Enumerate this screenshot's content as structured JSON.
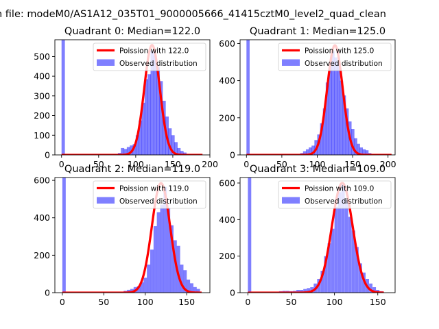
{
  "figure": {
    "suptitle": "n file: modeM0/AS1A12_035T01_9000005666_41415cztM0_level2_quad_clean"
  },
  "chart_data": [
    {
      "type": "bar",
      "quadrant": 0,
      "title": "Quadrant 0: Median=122.0",
      "xlim": [
        -9,
        200
      ],
      "ylim": [
        0,
        585
      ],
      "xticks": [
        0,
        50,
        100,
        150,
        200
      ],
      "yticks": [
        0,
        100,
        200,
        300,
        400,
        500
      ],
      "bin_width": 4.5,
      "legend": {
        "placement": "top-right",
        "line_label": "Poission with 122.0",
        "bar_label": "Observed distribution"
      },
      "poisson": {
        "mean": 122.0,
        "peak": 558,
        "sigma": 10.5,
        "x_range": [
          0,
          190
        ]
      },
      "bars": [
        {
          "x": 0,
          "v": 585
        },
        {
          "x": 72,
          "v": 5
        },
        {
          "x": 76,
          "v": 10
        },
        {
          "x": 80,
          "v": 35
        },
        {
          "x": 84,
          "v": 30
        },
        {
          "x": 88,
          "v": 40
        },
        {
          "x": 92,
          "v": 48
        },
        {
          "x": 96,
          "v": 55
        },
        {
          "x": 100,
          "v": 100
        },
        {
          "x": 104,
          "v": 175
        },
        {
          "x": 108,
          "v": 265
        },
        {
          "x": 112,
          "v": 385
        },
        {
          "x": 116,
          "v": 410
        },
        {
          "x": 120,
          "v": 530
        },
        {
          "x": 124,
          "v": 505
        },
        {
          "x": 128,
          "v": 445
        },
        {
          "x": 132,
          "v": 375
        },
        {
          "x": 136,
          "v": 275
        },
        {
          "x": 140,
          "v": 195
        },
        {
          "x": 144,
          "v": 135
        },
        {
          "x": 148,
          "v": 100
        },
        {
          "x": 152,
          "v": 65
        },
        {
          "x": 156,
          "v": 35
        },
        {
          "x": 160,
          "v": 20
        },
        {
          "x": 164,
          "v": 12
        },
        {
          "x": 168,
          "v": 5
        },
        {
          "x": 172,
          "v": 3
        }
      ]
    },
    {
      "type": "bar",
      "quadrant": 1,
      "title": "Quadrant 1: Median=125.0",
      "xlim": [
        -9,
        210
      ],
      "ylim": [
        0,
        620
      ],
      "xticks": [
        0,
        50,
        100,
        150,
        200
      ],
      "yticks": [
        0,
        200,
        400,
        600
      ],
      "bin_width": 4.5,
      "legend": {
        "placement": "top-right",
        "line_label": "Poission with 125.0",
        "bar_label": "Observed distribution"
      },
      "poisson": {
        "mean": 125.0,
        "peak": 590,
        "sigma": 11,
        "x_range": [
          0,
          205
        ]
      },
      "bars": [
        {
          "x": 0,
          "v": 620
        },
        {
          "x": 72,
          "v": 5
        },
        {
          "x": 76,
          "v": 10
        },
        {
          "x": 80,
          "v": 20
        },
        {
          "x": 84,
          "v": 30
        },
        {
          "x": 88,
          "v": 40
        },
        {
          "x": 92,
          "v": 50
        },
        {
          "x": 96,
          "v": 80
        },
        {
          "x": 100,
          "v": 110
        },
        {
          "x": 104,
          "v": 170
        },
        {
          "x": 108,
          "v": 250
        },
        {
          "x": 112,
          "v": 390
        },
        {
          "x": 116,
          "v": 475
        },
        {
          "x": 120,
          "v": 560
        },
        {
          "x": 124,
          "v": 525
        },
        {
          "x": 128,
          "v": 500
        },
        {
          "x": 132,
          "v": 400
        },
        {
          "x": 136,
          "v": 320
        },
        {
          "x": 140,
          "v": 250
        },
        {
          "x": 144,
          "v": 180
        },
        {
          "x": 148,
          "v": 140
        },
        {
          "x": 152,
          "v": 90
        },
        {
          "x": 156,
          "v": 60
        },
        {
          "x": 160,
          "v": 40
        },
        {
          "x": 164,
          "v": 30
        },
        {
          "x": 168,
          "v": 25
        },
        {
          "x": 172,
          "v": 10
        },
        {
          "x": 176,
          "v": 5
        }
      ]
    },
    {
      "type": "bar",
      "quadrant": 2,
      "title": "Quadrant 2: Median=119.0",
      "xlim": [
        -9,
        178
      ],
      "ylim": [
        0,
        615
      ],
      "xticks": [
        0,
        50,
        100,
        150
      ],
      "yticks": [
        0,
        200,
        400,
        600
      ],
      "bin_width": 4.1,
      "legend": {
        "placement": "top-right",
        "line_label": "Poission with 119.0",
        "bar_label": "Observed distribution"
      },
      "poisson": {
        "mean": 119.0,
        "peak": 585,
        "sigma": 11,
        "x_range": [
          0,
          168
        ]
      },
      "bars": [
        {
          "x": 0,
          "v": 615
        },
        {
          "x": 70,
          "v": 5
        },
        {
          "x": 74,
          "v": 10
        },
        {
          "x": 78,
          "v": 15
        },
        {
          "x": 82,
          "v": 20
        },
        {
          "x": 86,
          "v": 30
        },
        {
          "x": 90,
          "v": 35
        },
        {
          "x": 94,
          "v": 55
        },
        {
          "x": 98,
          "v": 80
        },
        {
          "x": 102,
          "v": 150
        },
        {
          "x": 106,
          "v": 230
        },
        {
          "x": 110,
          "v": 355
        },
        {
          "x": 114,
          "v": 430
        },
        {
          "x": 118,
          "v": 470
        },
        {
          "x": 122,
          "v": 565
        },
        {
          "x": 126,
          "v": 450
        },
        {
          "x": 130,
          "v": 360
        },
        {
          "x": 134,
          "v": 280
        },
        {
          "x": 138,
          "v": 250
        },
        {
          "x": 142,
          "v": 150
        },
        {
          "x": 146,
          "v": 120
        },
        {
          "x": 150,
          "v": 70
        },
        {
          "x": 154,
          "v": 50
        },
        {
          "x": 158,
          "v": 30
        },
        {
          "x": 162,
          "v": 20
        }
      ]
    },
    {
      "type": "bar",
      "quadrant": 3,
      "title": "Quadrant 3: Median=109.0",
      "xlim": [
        -9,
        170
      ],
      "ylim": [
        0,
        630
      ],
      "xticks": [
        0,
        50,
        100,
        150
      ],
      "yticks": [
        0,
        200,
        400,
        600
      ],
      "bin_width": 3.9,
      "legend": {
        "placement": "top-right",
        "line_label": "Poission with 109.0",
        "bar_label": "Observed distribution"
      },
      "poisson": {
        "mean": 109.0,
        "peak": 600,
        "sigma": 12,
        "x_range": [
          0,
          157
        ]
      },
      "bars": [
        {
          "x": 0,
          "v": 630
        },
        {
          "x": 28,
          "v": 5
        },
        {
          "x": 32,
          "v": 5
        },
        {
          "x": 36,
          "v": 8
        },
        {
          "x": 40,
          "v": 10
        },
        {
          "x": 44,
          "v": 10
        },
        {
          "x": 48,
          "v": 8
        },
        {
          "x": 52,
          "v": 10
        },
        {
          "x": 56,
          "v": 15
        },
        {
          "x": 60,
          "v": 15
        },
        {
          "x": 64,
          "v": 20
        },
        {
          "x": 68,
          "v": 25
        },
        {
          "x": 72,
          "v": 30
        },
        {
          "x": 76,
          "v": 50
        },
        {
          "x": 80,
          "v": 75
        },
        {
          "x": 84,
          "v": 120
        },
        {
          "x": 88,
          "v": 200
        },
        {
          "x": 92,
          "v": 270
        },
        {
          "x": 96,
          "v": 350
        },
        {
          "x": 100,
          "v": 470
        },
        {
          "x": 104,
          "v": 550
        },
        {
          "x": 108,
          "v": 600
        },
        {
          "x": 112,
          "v": 510
        },
        {
          "x": 116,
          "v": 415
        },
        {
          "x": 120,
          "v": 340
        },
        {
          "x": 124,
          "v": 250
        },
        {
          "x": 128,
          "v": 160
        },
        {
          "x": 132,
          "v": 110
        },
        {
          "x": 136,
          "v": 75
        },
        {
          "x": 140,
          "v": 50
        },
        {
          "x": 144,
          "v": 30
        },
        {
          "x": 148,
          "v": 15
        },
        {
          "x": 152,
          "v": 8
        }
      ]
    }
  ]
}
